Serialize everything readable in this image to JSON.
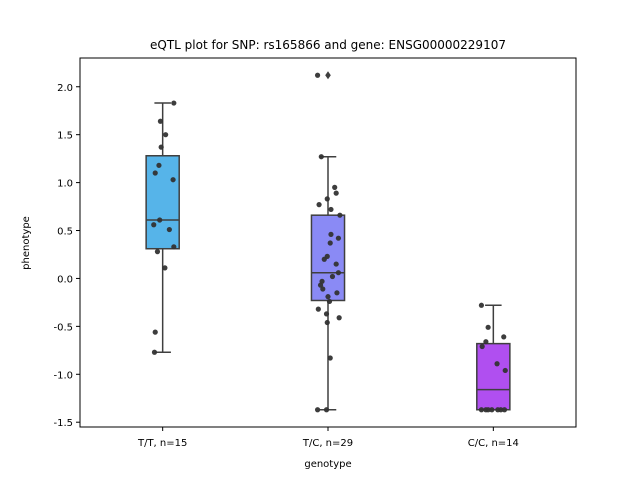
{
  "chart_data": {
    "type": "box",
    "title": "eQTL plot for SNP: rs165866 and gene: ENSG00000229107",
    "xlabel": "genotype",
    "ylabel": "phenotype",
    "ylim": [
      -1.55,
      2.3
    ],
    "yticks": [
      "-1.5",
      "-1.0",
      "-0.5",
      "0.0",
      "0.5",
      "1.0",
      "1.5",
      "2.0"
    ],
    "ytick_values": [
      -1.5,
      -1.0,
      -0.5,
      0.0,
      0.5,
      1.0,
      1.5,
      2.0
    ],
    "categories": [
      "T/T, n=15",
      "T/C, n=29",
      "C/C, n=14"
    ],
    "grid": false,
    "groups": [
      {
        "label": "T/T, n=15",
        "color": "#56b4e9",
        "box": {
          "whisker_low": -0.77,
          "q1": 0.31,
          "median": 0.61,
          "q3": 1.28,
          "whisker_high": 1.83
        },
        "outliers": [],
        "points": [
          {
            "dx": 0.15,
            "y": 1.83
          },
          {
            "dx": -0.03,
            "y": 1.64
          },
          {
            "dx": 0.04,
            "y": 1.5
          },
          {
            "dx": -0.02,
            "y": 1.37
          },
          {
            "dx": -0.05,
            "y": 1.18
          },
          {
            "dx": -0.1,
            "y": 1.1
          },
          {
            "dx": 0.14,
            "y": 1.03
          },
          {
            "dx": -0.04,
            "y": 0.61
          },
          {
            "dx": -0.12,
            "y": 0.56
          },
          {
            "dx": 0.09,
            "y": 0.51
          },
          {
            "dx": 0.15,
            "y": 0.33
          },
          {
            "dx": -0.07,
            "y": 0.28
          },
          {
            "dx": 0.03,
            "y": 0.11
          },
          {
            "dx": -0.1,
            "y": -0.56
          },
          {
            "dx": -0.11,
            "y": -0.77
          }
        ]
      },
      {
        "label": "T/C, n=29",
        "color": "#8a8af5",
        "box": {
          "whisker_low": -1.37,
          "q1": -0.23,
          "median": 0.06,
          "q3": 0.66,
          "whisker_high": 1.27
        },
        "outliers": [
          2.12
        ],
        "points": [
          {
            "dx": -0.14,
            "y": 2.12
          },
          {
            "dx": 0.11,
            "y": 0.89
          },
          {
            "dx": -0.09,
            "y": 1.27
          },
          {
            "dx": 0.09,
            "y": 0.95
          },
          {
            "dx": -0.01,
            "y": 0.83
          },
          {
            "dx": -0.12,
            "y": 0.77
          },
          {
            "dx": 0.04,
            "y": 0.72
          },
          {
            "dx": 0.16,
            "y": 0.66
          },
          {
            "dx": 0.04,
            "y": 0.46
          },
          {
            "dx": 0.14,
            "y": 0.42
          },
          {
            "dx": 0.03,
            "y": 0.37
          },
          {
            "dx": -0.05,
            "y": 0.2
          },
          {
            "dx": -0.01,
            "y": 0.23
          },
          {
            "dx": 0.11,
            "y": 0.15
          },
          {
            "dx": 0.14,
            "y": 0.06
          },
          {
            "dx": 0.06,
            "y": 0.02
          },
          {
            "dx": -0.08,
            "y": -0.03
          },
          {
            "dx": -0.1,
            "y": -0.07
          },
          {
            "dx": -0.07,
            "y": -0.11
          },
          {
            "dx": 0.12,
            "y": -0.15
          },
          {
            "dx": 0.0,
            "y": -0.19
          },
          {
            "dx": 0.02,
            "y": -0.24
          },
          {
            "dx": -0.13,
            "y": -0.32
          },
          {
            "dx": -0.02,
            "y": -0.37
          },
          {
            "dx": 0.15,
            "y": -0.41
          },
          {
            "dx": -0.01,
            "y": -0.46
          },
          {
            "dx": 0.03,
            "y": -0.83
          },
          {
            "dx": -0.14,
            "y": -1.37
          },
          {
            "dx": -0.02,
            "y": -1.37
          }
        ]
      },
      {
        "label": "C/C, n=14",
        "color": "#b04ff0",
        "box": {
          "whisker_low": -1.37,
          "q1": -1.37,
          "median": -1.16,
          "q3": -0.68,
          "whisker_high": -0.28
        },
        "outliers": [],
        "points": [
          {
            "dx": -0.16,
            "y": -0.28
          },
          {
            "dx": -0.07,
            "y": -0.51
          },
          {
            "dx": 0.14,
            "y": -0.61
          },
          {
            "dx": -0.1,
            "y": -0.66
          },
          {
            "dx": -0.15,
            "y": -0.71
          },
          {
            "dx": 0.05,
            "y": -0.89
          },
          {
            "dx": 0.16,
            "y": -0.96
          },
          {
            "dx": -0.16,
            "y": -1.37
          },
          {
            "dx": -0.1,
            "y": -1.37
          },
          {
            "dx": -0.07,
            "y": -1.37
          },
          {
            "dx": -0.02,
            "y": -1.37
          },
          {
            "dx": 0.06,
            "y": -1.37
          },
          {
            "dx": 0.1,
            "y": -1.37
          },
          {
            "dx": 0.15,
            "y": -1.37
          }
        ]
      }
    ]
  }
}
